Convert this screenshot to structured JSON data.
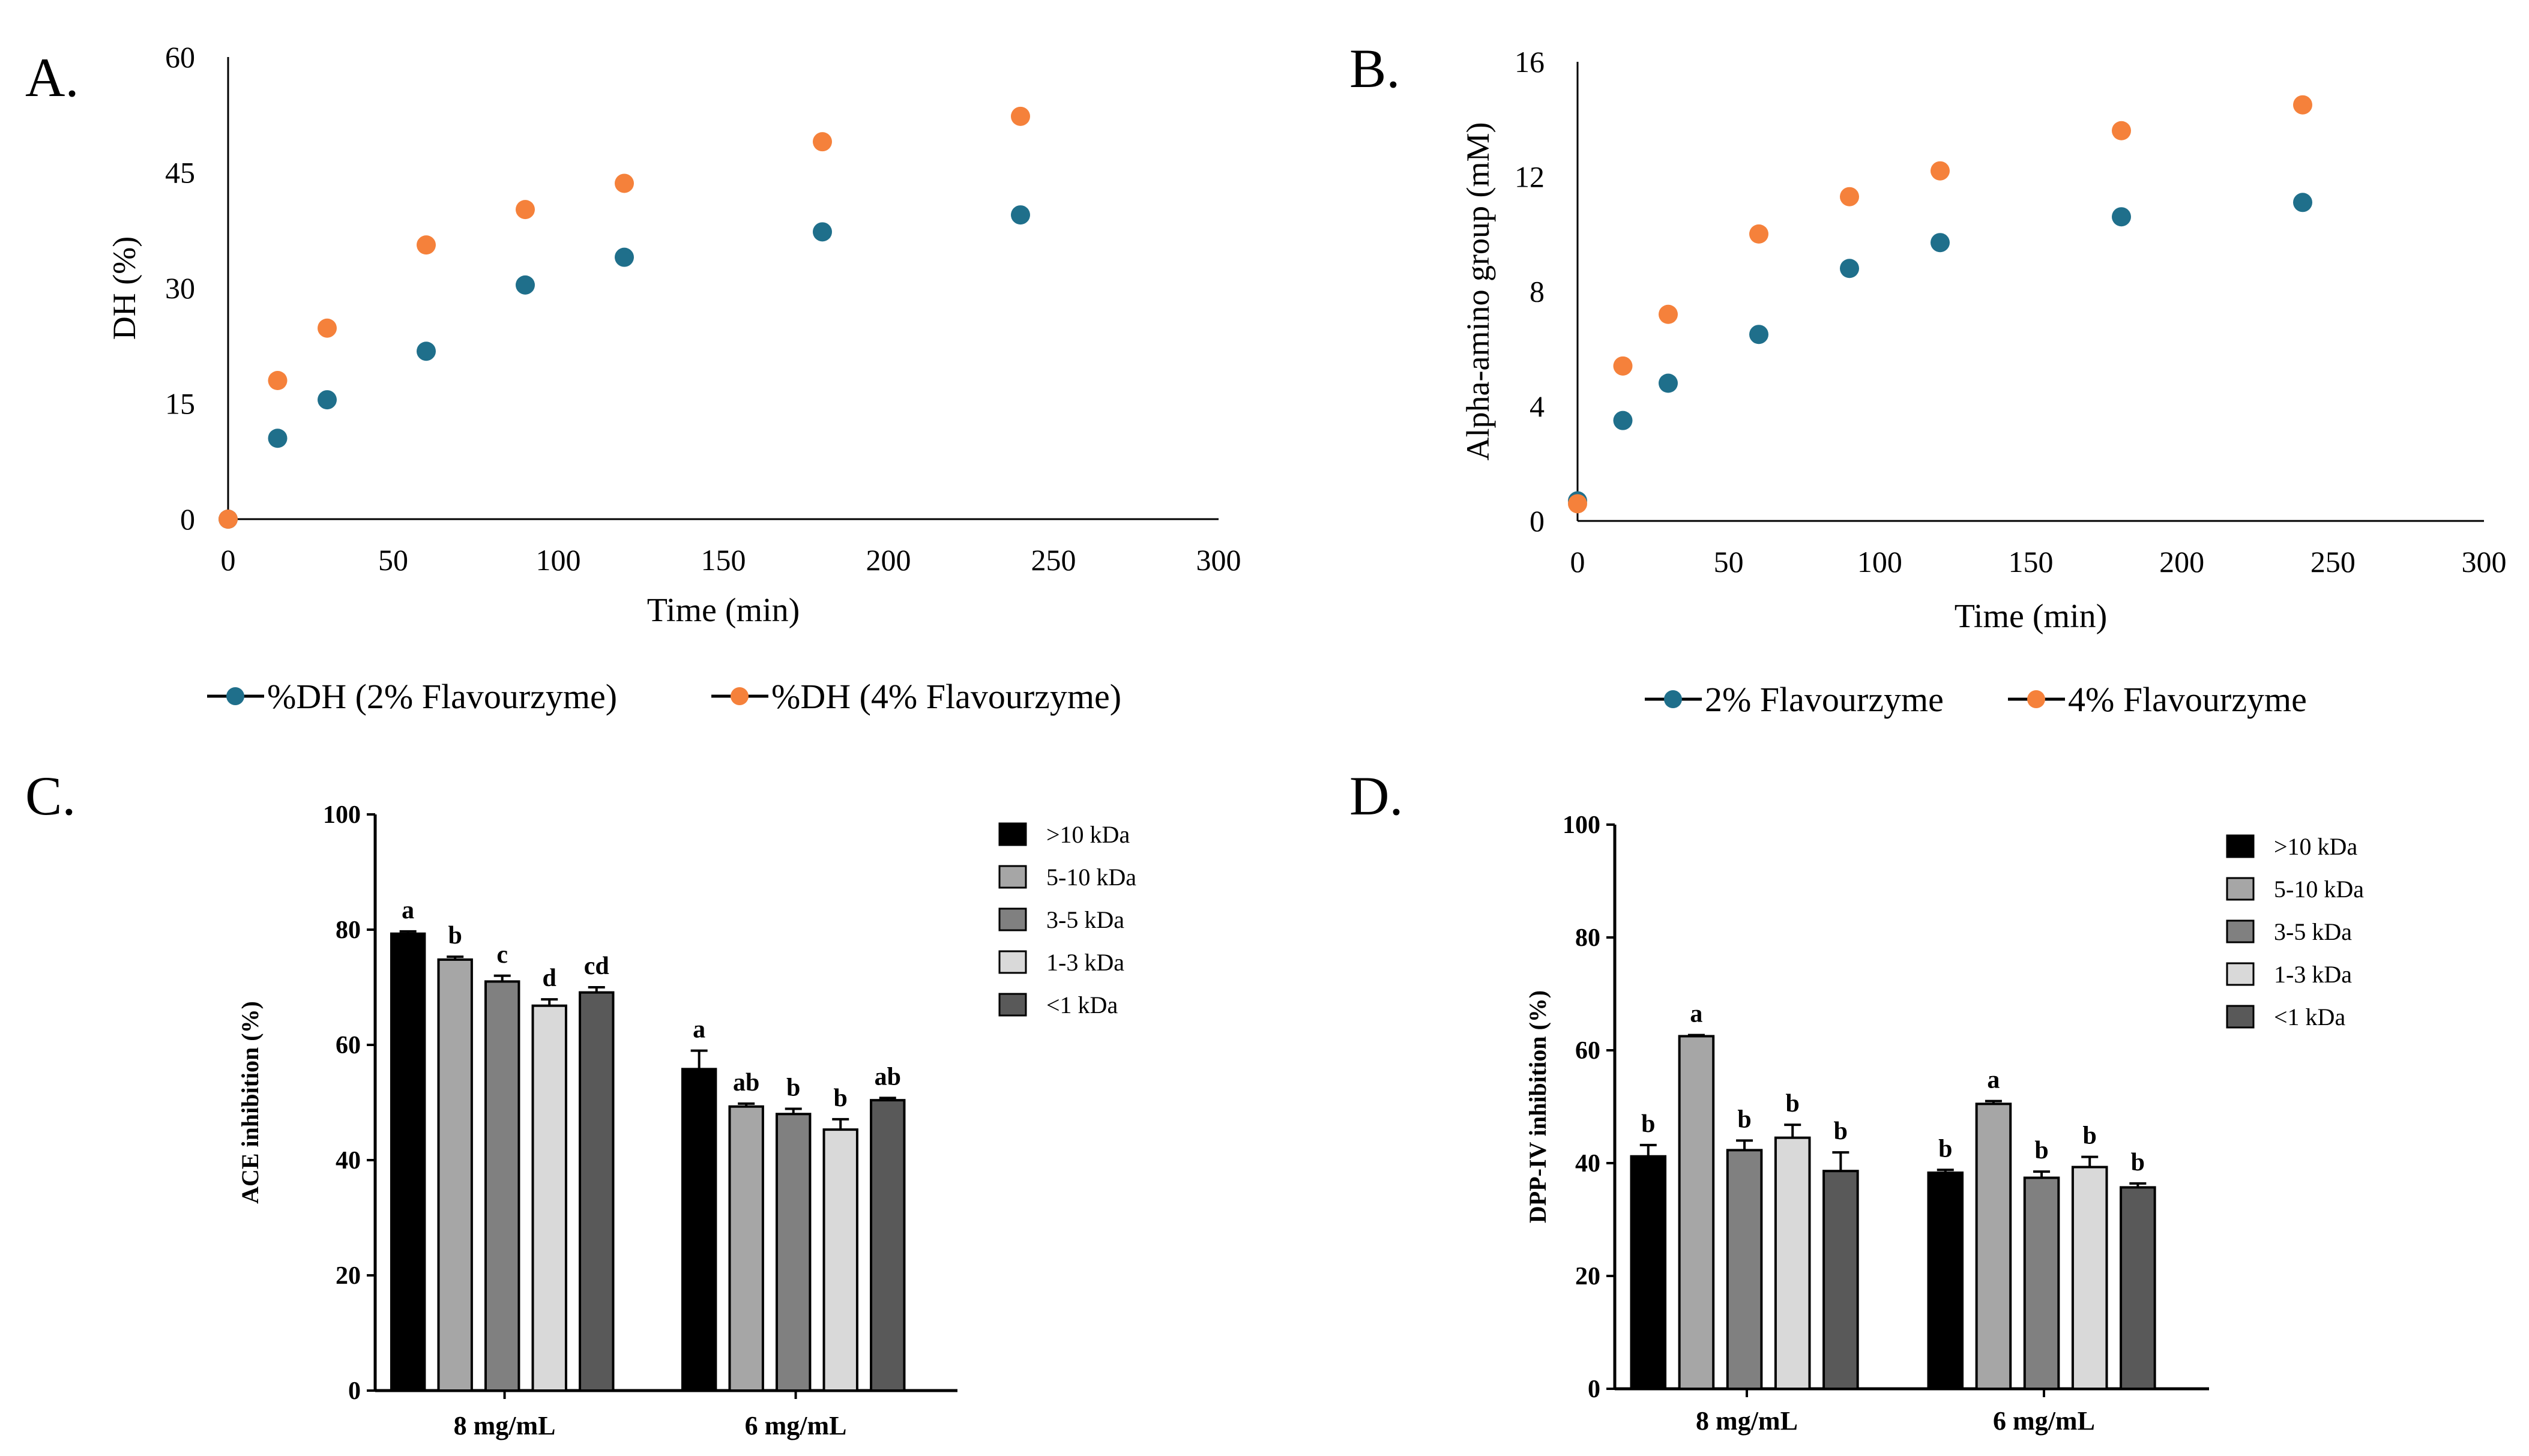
{
  "colors": {
    "series_2pct": "#1f6f8b",
    "series_4pct": "#f5813b",
    "axis": "#000000",
    "bar_colors": [
      "#000000",
      "#a6a6a6",
      "#808080",
      "#d9d9d9",
      "#595959"
    ]
  },
  "chart_data": [
    {
      "panel_label": "A.",
      "type": "scatter",
      "xlabel": "Time (min)",
      "ylabel": "DH (%)",
      "xlim": [
        0,
        300
      ],
      "ylim": [
        0,
        60
      ],
      "xticks": [
        0,
        50,
        100,
        150,
        200,
        250,
        300
      ],
      "yticks": [
        0,
        15,
        30,
        45,
        60
      ],
      "grid": false,
      "legend_position": "bottom",
      "series": [
        {
          "name": "%DH (2% Flavourzyme)",
          "color": "#1f6f8b",
          "x": [
            0,
            15,
            30,
            60,
            90,
            120,
            180,
            240
          ],
          "y": [
            0,
            10.5,
            15.5,
            21.8,
            30.4,
            34.0,
            37.3,
            39.5
          ]
        },
        {
          "name": "%DH (4% Flavourzyme)",
          "color": "#f5813b",
          "x": [
            0,
            15,
            30,
            60,
            90,
            120,
            180,
            240
          ],
          "y": [
            0,
            18.0,
            24.8,
            35.6,
            40.2,
            43.6,
            49.0,
            52.3
          ]
        }
      ]
    },
    {
      "panel_label": "B.",
      "type": "scatter",
      "xlabel": "Time (min)",
      "ylabel": "Alpha-amino  group (mM)",
      "xlim": [
        0,
        300
      ],
      "ylim": [
        0,
        16
      ],
      "xticks": [
        0,
        50,
        100,
        150,
        200,
        250,
        300
      ],
      "yticks": [
        0,
        4,
        8,
        12,
        16
      ],
      "grid": false,
      "legend_position": "bottom",
      "series": [
        {
          "name": "2% Flavourzyme",
          "color": "#1f6f8b",
          "x": [
            0,
            15,
            30,
            60,
            90,
            120,
            180,
            240
          ],
          "y": [
            0.7,
            3.5,
            4.8,
            6.5,
            8.8,
            9.7,
            10.6,
            11.1
          ]
        },
        {
          "name": "4% Flavourzyme",
          "color": "#f5813b",
          "x": [
            0,
            15,
            30,
            60,
            90,
            120,
            180,
            240
          ],
          "y": [
            0.6,
            5.4,
            7.2,
            10.0,
            11.3,
            12.2,
            13.6,
            14.5
          ]
        }
      ]
    },
    {
      "panel_label": "C.",
      "type": "bar",
      "xlabel": "",
      "ylabel": "ACE inhibition (%)",
      "ylim": [
        0,
        100
      ],
      "yticks": [
        0,
        20,
        40,
        60,
        80,
        100
      ],
      "grid": false,
      "legend_position": "top-right",
      "categories": [
        "8 mg/mL",
        "6 mg/mL"
      ],
      "series": [
        {
          "name": ">10 kDa",
          "color": "#000000",
          "values": [
            79.3,
            55.8
          ],
          "errors": [
            0.4,
            3.2
          ],
          "labels": [
            "a",
            "a"
          ]
        },
        {
          "name": "5-10 kDa",
          "color": "#a6a6a6",
          "values": [
            74.8,
            49.3
          ],
          "errors": [
            0.5,
            0.5
          ],
          "labels": [
            "b",
            "ab"
          ]
        },
        {
          "name": "3-5 kDa",
          "color": "#808080",
          "values": [
            71.0,
            48.0
          ],
          "errors": [
            1.0,
            0.9
          ],
          "labels": [
            "c",
            "b"
          ]
        },
        {
          "name": "1-3 kDa",
          "color": "#d9d9d9",
          "values": [
            66.8,
            45.3
          ],
          "errors": [
            1.1,
            1.8
          ],
          "labels": [
            "d",
            "b"
          ]
        },
        {
          "name": "<1 kDa",
          "color": "#595959",
          "values": [
            69.1,
            50.4
          ],
          "errors": [
            0.9,
            0.4
          ],
          "labels": [
            "cd",
            "ab"
          ]
        }
      ]
    },
    {
      "panel_label": "D.",
      "type": "bar",
      "xlabel": "",
      "ylabel": "DPP-IV inhibition (%)",
      "ylim": [
        0,
        100
      ],
      "yticks": [
        0,
        20,
        40,
        60,
        80,
        100
      ],
      "grid": false,
      "legend_position": "top-right",
      "categories": [
        "8 mg/mL",
        "6 mg/mL"
      ],
      "series": [
        {
          "name": ">10 kDa",
          "color": "#000000",
          "values": [
            41.2,
            38.3
          ],
          "errors": [
            2.0,
            0.5
          ],
          "labels": [
            "b",
            "b"
          ]
        },
        {
          "name": "5-10 kDa",
          "color": "#a6a6a6",
          "values": [
            62.5,
            50.5
          ],
          "errors": [
            0.2,
            0.5
          ],
          "labels": [
            "a",
            "a"
          ]
        },
        {
          "name": "3-5 kDa",
          "color": "#808080",
          "values": [
            42.3,
            37.4
          ],
          "errors": [
            1.7,
            1.1
          ],
          "labels": [
            "b",
            "b"
          ]
        },
        {
          "name": "1-3 kDa",
          "color": "#d9d9d9",
          "values": [
            44.5,
            39.3
          ],
          "errors": [
            2.3,
            1.8
          ],
          "labels": [
            "b",
            "b"
          ]
        },
        {
          "name": "<1 kDa",
          "color": "#595959",
          "values": [
            38.6,
            35.7
          ],
          "errors": [
            3.3,
            0.7
          ],
          "labels": [
            "b",
            "b"
          ]
        }
      ]
    }
  ]
}
